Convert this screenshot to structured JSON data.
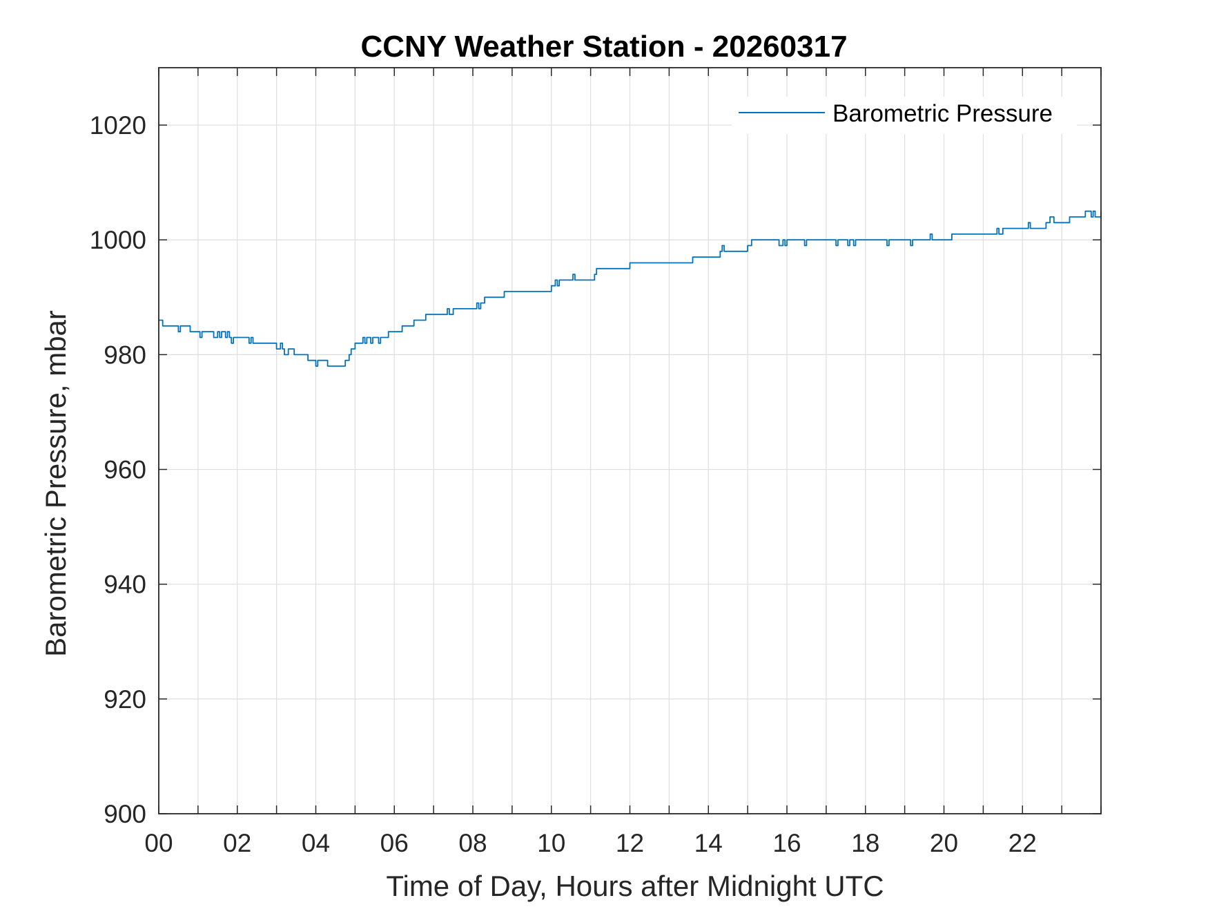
{
  "chart_data": {
    "type": "line",
    "title": "CCNY Weather Station - 20260317",
    "xlabel": "Time of Day, Hours after Midnight UTC",
    "ylabel": "Barometric Pressure, mbar",
    "xlim": [
      0,
      24
    ],
    "ylim": [
      900,
      1030
    ],
    "xticks": [
      0,
      2,
      4,
      6,
      8,
      10,
      12,
      14,
      16,
      18,
      20,
      22
    ],
    "xtick_labels": [
      "00",
      "02",
      "04",
      "06",
      "08",
      "10",
      "12",
      "14",
      "16",
      "18",
      "20",
      "22"
    ],
    "yticks": [
      900,
      920,
      940,
      960,
      980,
      1000,
      1020
    ],
    "ytick_labels": [
      "900",
      "920",
      "940",
      "960",
      "980",
      "1000",
      "1020"
    ],
    "grid": true,
    "legend_position": "top-right",
    "series": [
      {
        "name": "Barometric Pressure",
        "color": "#0072BD",
        "x": [
          0.0,
          0.1,
          0.5,
          0.55,
          0.6,
          0.8,
          1.0,
          1.05,
          1.1,
          1.4,
          1.5,
          1.55,
          1.6,
          1.7,
          1.75,
          1.8,
          1.85,
          1.9,
          2.0,
          2.3,
          2.35,
          2.4,
          2.5,
          3.0,
          3.1,
          3.15,
          3.2,
          3.3,
          3.4,
          3.45,
          3.5,
          3.8,
          3.9,
          4.0,
          4.05,
          4.1,
          4.3,
          4.45,
          4.5,
          4.55,
          4.75,
          4.85,
          4.9,
          5.0,
          5.1,
          5.2,
          5.25,
          5.3,
          5.4,
          5.45,
          5.5,
          5.6,
          5.65,
          5.7,
          5.8,
          5.85,
          5.9,
          6.0,
          6.2,
          6.3,
          6.5,
          6.6,
          6.8,
          7.3,
          7.35,
          7.4,
          7.5,
          8.0,
          8.1,
          8.15,
          8.2,
          8.3,
          8.8,
          9.7,
          10.0,
          10.1,
          10.15,
          10.2,
          10.5,
          10.55,
          10.6,
          11.1,
          11.15,
          11.2,
          12.0,
          13.0,
          13.6,
          14.3,
          14.35,
          14.4,
          15.0,
          15.1,
          15.7,
          15.75,
          15.8,
          15.9,
          15.95,
          16.0,
          16.4,
          16.45,
          16.5,
          17.2,
          17.25,
          17.3,
          17.5,
          17.55,
          17.6,
          17.7,
          17.75,
          17.8,
          18.5,
          18.55,
          18.6,
          19.1,
          19.15,
          19.2,
          19.6,
          19.65,
          19.7,
          20.2,
          21.3,
          21.35,
          21.4,
          21.5,
          22.1,
          22.15,
          22.2,
          22.6,
          22.7,
          22.8,
          23.2,
          23.6,
          23.75,
          23.8,
          23.85,
          24.0
        ],
        "y": [
          986,
          985,
          984,
          985,
          985,
          984,
          984,
          983,
          984,
          983,
          984,
          983,
          984,
          983,
          984,
          983,
          982,
          983,
          983,
          982,
          983,
          982,
          982,
          981,
          982,
          981,
          980,
          981,
          981,
          980,
          980,
          979,
          979,
          978,
          979,
          979,
          978,
          978,
          978,
          978,
          979,
          980,
          981,
          982,
          982,
          983,
          982,
          983,
          982,
          983,
          983,
          982,
          983,
          983,
          983,
          984,
          984,
          984,
          985,
          985,
          986,
          986,
          987,
          987,
          988,
          987,
          988,
          988,
          989,
          988,
          989,
          990,
          991,
          991,
          992,
          993,
          992,
          993,
          993,
          994,
          993,
          994,
          995,
          995,
          996,
          996,
          997,
          998,
          999,
          998,
          999,
          1000,
          1000,
          1000,
          999,
          1000,
          999,
          1000,
          1000,
          999,
          1000,
          1000,
          999,
          1000,
          1000,
          999,
          1000,
          999,
          1000,
          1000,
          1000,
          999,
          1000,
          1000,
          999,
          1000,
          1000,
          1001,
          1000,
          1001,
          1001,
          1002,
          1001,
          1002,
          1002,
          1003,
          1002,
          1003,
          1004,
          1003,
          1004,
          1005,
          1004,
          1005,
          1004,
          1005
        ]
      }
    ]
  }
}
